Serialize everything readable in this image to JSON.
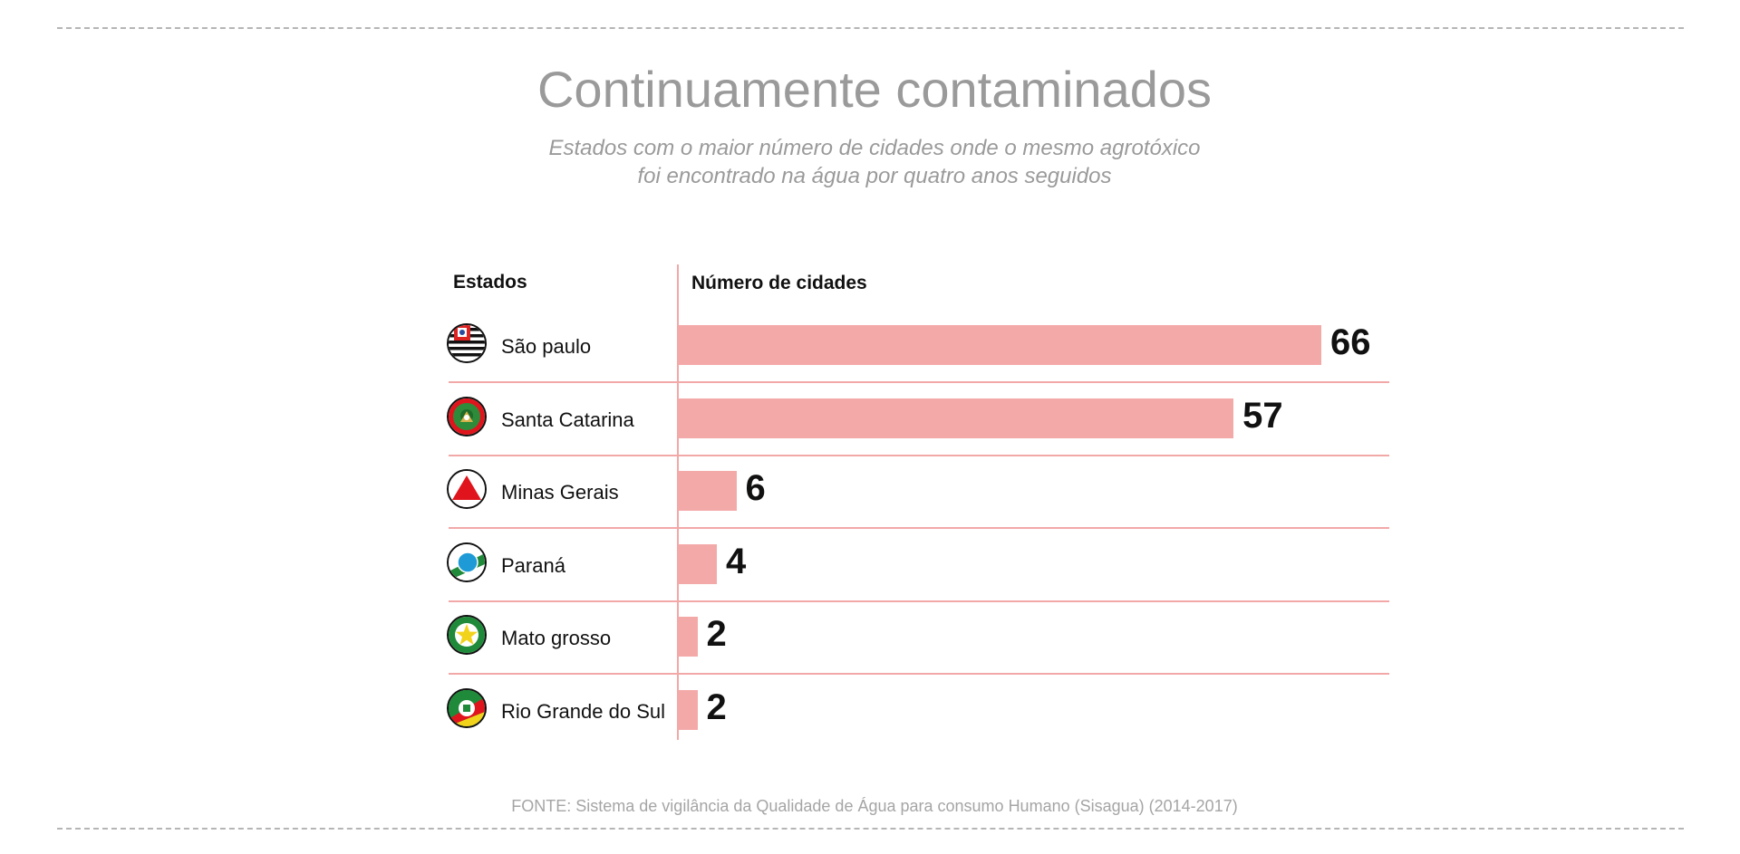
{
  "chart_data": {
    "type": "bar",
    "orientation": "horizontal",
    "title": "Continuamente contaminados",
    "subtitle_lines": [
      "Estados com o maior número de cidades onde o mesmo agrotóxico",
      "foi encontrado na água por quatro anos seguidos"
    ],
    "category_header": "Estados",
    "value_header": "Número de cidades",
    "categories": [
      "São paulo",
      "Santa Catarina",
      "Minas Gerais",
      "Paraná",
      "Mato grosso",
      "Rio Grande do Sul"
    ],
    "values": [
      66,
      57,
      6,
      4,
      2,
      2
    ],
    "xlim": [
      0,
      66
    ],
    "grid": false,
    "bar_color": "#f4a9a9",
    "source": "FONTE: Sistema de vigilância da Qualidade de Água para consumo Humano (Sisagua) (2014-2017)"
  },
  "flags": [
    "sao-paulo-flag-icon",
    "santa-catarina-flag-icon",
    "minas-gerais-flag-icon",
    "parana-flag-icon",
    "mato-grosso-flag-icon",
    "rio-grande-do-sul-flag-icon"
  ]
}
